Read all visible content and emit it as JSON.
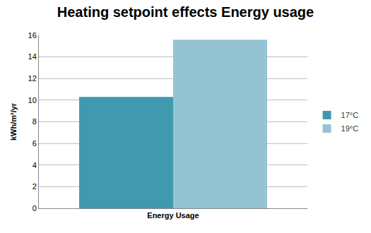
{
  "chart_data": {
    "type": "bar",
    "title": "Heating setpoint effects Energy usage",
    "y_label": "kWh/m²/yr",
    "categories": [
      "Energy Usage"
    ],
    "series": [
      {
        "name": "17°C",
        "color": "#4199b0",
        "values": [
          10.3
        ]
      },
      {
        "name": "19°C",
        "color": "#94c3d4",
        "values": [
          15.6
        ]
      }
    ],
    "ylim": [
      0,
      16
    ],
    "yticks": [
      0,
      2,
      4,
      6,
      8,
      10,
      12,
      14,
      16
    ],
    "grid": true,
    "legend": "right"
  }
}
